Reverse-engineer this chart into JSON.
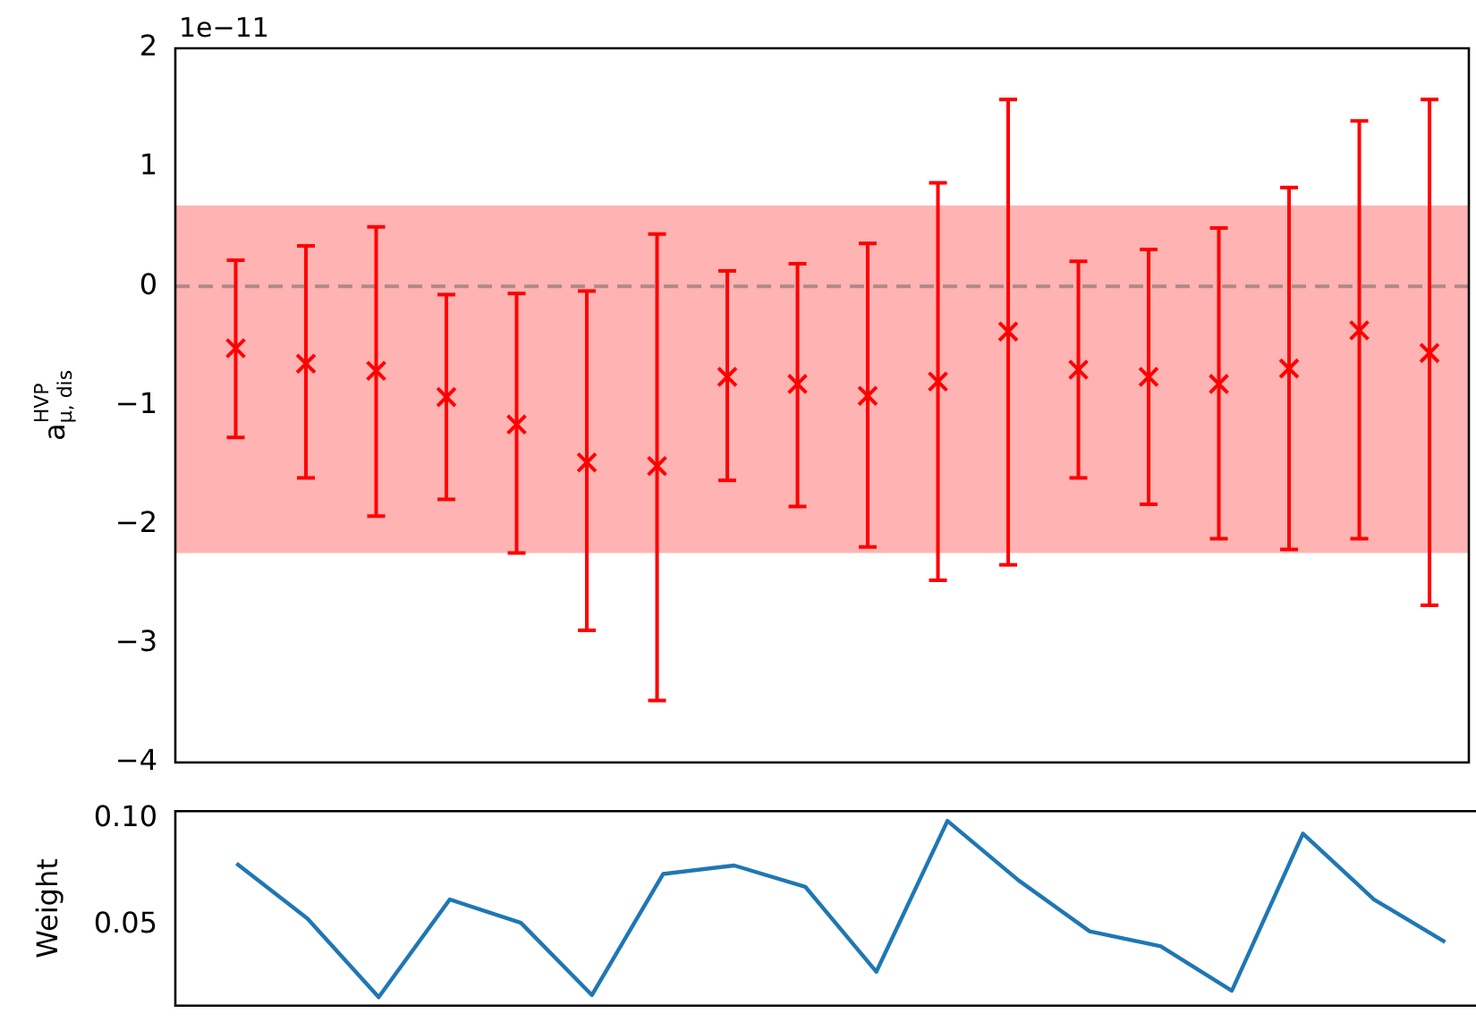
{
  "chart_data": [
    {
      "type": "scatter",
      "ylabel": "a$_{μ, dis}$$^{HVP}$",
      "annotations": [
        "1e−11"
      ],
      "categories": [
        null,
        null,
        null,
        null,
        null,
        null,
        null,
        null,
        null,
        null,
        null,
        null,
        null,
        null,
        null,
        null,
        null,
        null
      ],
      "series": [
        {
          "color": "#ff0000",
          "values": [
            -0.52,
            -0.65,
            -0.71,
            -0.93,
            -1.16,
            -1.48,
            -1.51,
            -0.76,
            -0.82,
            -0.92,
            -0.8,
            -0.38,
            -0.7,
            -0.76,
            -0.82,
            -0.69,
            -0.37,
            -0.56
          ],
          "errors": [
            [
              -1.27,
              0.22
            ],
            [
              -1.61,
              0.34
            ],
            [
              -1.93,
              0.5
            ],
            [
              -1.79,
              -0.07
            ],
            [
              -2.24,
              -0.06
            ],
            [
              -2.89,
              -0.04
            ],
            [
              -3.48,
              0.44
            ],
            [
              -1.63,
              0.13
            ],
            [
              -1.85,
              0.19
            ],
            [
              -2.19,
              0.36
            ],
            [
              -2.47,
              0.87
            ],
            [
              -2.34,
              1.57
            ],
            [
              -1.61,
              0.21
            ],
            [
              -1.83,
              0.31
            ],
            [
              -2.12,
              0.49
            ],
            [
              -2.21,
              0.83
            ],
            [
              -2.12,
              1.39
            ],
            [
              -2.68,
              1.57
            ]
          ]
        }
      ],
      "marker": "cross",
      "ylim": [
        -4,
        2
      ],
      "yticks": [
        -4,
        -3,
        -2,
        -1,
        0,
        1,
        2
      ],
      "grid": false,
      "tick_labels": "y",
      "bands": [
        {
          "axis": "y",
          "from": -2.24,
          "to": 0.68,
          "color": "#ffb3b3"
        }
      ],
      "ref_lines": [
        {
          "axis": "y",
          "value": 0,
          "color": "#b08888",
          "line_style": "dashed"
        }
      ]
    },
    {
      "type": "line",
      "ylabel": "Weight",
      "categories": [
        null,
        null,
        null,
        null,
        null,
        null,
        null,
        null,
        null,
        null,
        null,
        null,
        null,
        null,
        null,
        null,
        null,
        null
      ],
      "series": [
        {
          "color": "#1f77b4",
          "values": [
            0.079,
            0.053,
            0.016,
            0.062,
            0.051,
            0.017,
            0.074,
            0.078,
            0.068,
            0.028,
            0.099,
            0.071,
            0.047,
            0.04,
            0.019,
            0.093,
            0.062,
            0.042
          ]
        }
      ],
      "marker": "none",
      "line_style": "solid",
      "ylim": [
        0.012,
        0.1036
      ],
      "yticks": [
        {
          "value": 0.05,
          "label": "0.05"
        },
        {
          "value": 0.1,
          "label": "0.10"
        }
      ],
      "grid": false,
      "tick_labels": "y"
    }
  ]
}
